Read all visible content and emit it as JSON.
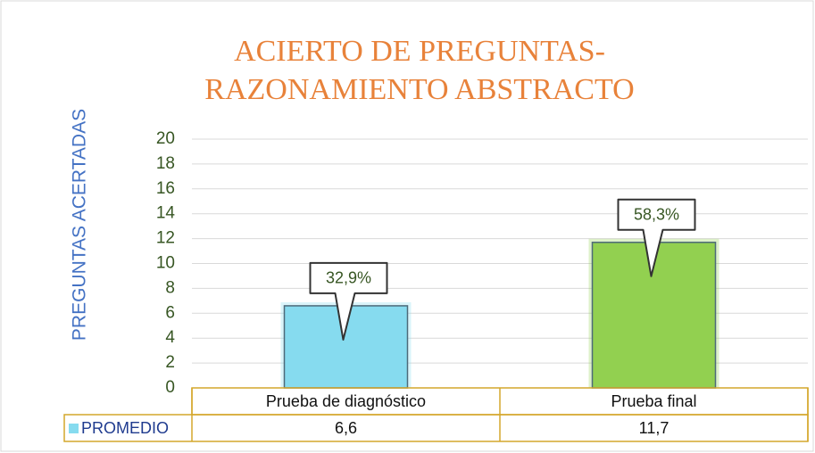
{
  "chart_data": {
    "type": "bar",
    "title": [
      "ACIERTO DE PREGUNTAS-",
      "RAZONAMIENTO ABSTRACTO"
    ],
    "y_label": "PREGUNTAS ACERTADAS",
    "categories": [
      "Prueba de diagnóstico",
      "Prueba final"
    ],
    "series": [
      {
        "name": "PROMEDIO",
        "colors": [
          "#86dbef",
          "#92d050"
        ],
        "values": [
          6.6,
          11.7
        ],
        "value_labels": [
          "6,6",
          "11,7"
        ]
      }
    ],
    "annotations": [
      "32,9%",
      "58,3%"
    ],
    "ylim": [
      0,
      20
    ],
    "yticks": [
      0,
      2,
      4,
      6,
      8,
      10,
      12,
      14,
      16,
      18,
      20
    ],
    "grid": true,
    "data_table": true
  }
}
